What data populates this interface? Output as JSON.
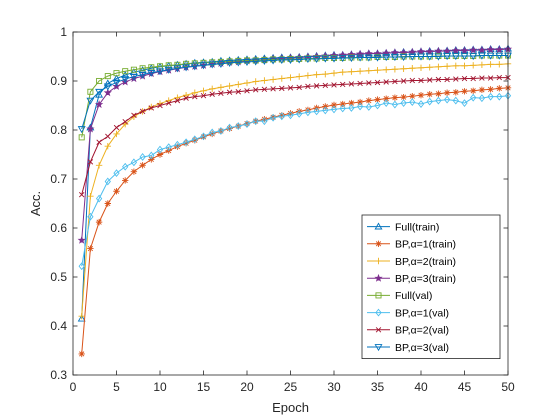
{
  "chart_data": {
    "type": "line",
    "xlabel": "Epoch",
    "ylabel": "Acc.",
    "xlim": [
      0,
      50
    ],
    "ylim": [
      0.3,
      1
    ],
    "xticks": [
      0,
      5,
      10,
      15,
      20,
      25,
      30,
      35,
      40,
      45,
      50
    ],
    "yticks": [
      0.3,
      0.4,
      0.5,
      0.6,
      0.7,
      0.8,
      0.9,
      1
    ],
    "ytick_labels": [
      "0.3",
      "0.4",
      "0.5",
      "0.6",
      "0.7",
      "0.8",
      "0.9",
      "1"
    ],
    "grid": false,
    "legend_position": "lower-right",
    "x": [
      1,
      2,
      3,
      4,
      5,
      6,
      7,
      8,
      9,
      10,
      11,
      12,
      13,
      14,
      15,
      16,
      17,
      18,
      19,
      20,
      21,
      22,
      23,
      24,
      25,
      26,
      27,
      28,
      29,
      30,
      31,
      32,
      33,
      34,
      35,
      36,
      37,
      38,
      39,
      40,
      41,
      42,
      43,
      44,
      45,
      46,
      47,
      48,
      49,
      50
    ],
    "series": [
      {
        "name": "Full(train)",
        "color": "#0072BD",
        "marker": "triangle-up",
        "values": [
          0.415,
          0.805,
          0.872,
          0.895,
          0.905,
          0.912,
          0.918,
          0.922,
          0.926,
          0.929,
          0.931,
          0.933,
          0.935,
          0.937,
          0.938,
          0.939,
          0.941,
          0.942,
          0.943,
          0.944,
          0.945,
          0.946,
          0.947,
          0.948,
          0.948,
          0.949,
          0.95,
          0.951,
          0.952,
          0.953,
          0.953,
          0.954,
          0.955,
          0.956,
          0.956,
          0.957,
          0.958,
          0.959,
          0.959,
          0.96,
          0.961,
          0.961,
          0.962,
          0.963,
          0.963,
          0.964,
          0.964,
          0.965,
          0.965,
          0.966
        ]
      },
      {
        "name": "BP,α=1(train)",
        "color": "#D95319",
        "marker": "asterisk",
        "values": [
          0.343,
          0.558,
          0.612,
          0.65,
          0.675,
          0.697,
          0.715,
          0.728,
          0.74,
          0.75,
          0.758,
          0.766,
          0.773,
          0.779,
          0.786,
          0.792,
          0.798,
          0.803,
          0.808,
          0.813,
          0.818,
          0.822,
          0.826,
          0.83,
          0.834,
          0.838,
          0.841,
          0.845,
          0.848,
          0.851,
          0.853,
          0.855,
          0.857,
          0.86,
          0.862,
          0.864,
          0.866,
          0.867,
          0.869,
          0.871,
          0.873,
          0.874,
          0.876,
          0.877,
          0.879,
          0.88,
          0.882,
          0.883,
          0.885,
          0.886
        ]
      },
      {
        "name": "BP,α=2(train)",
        "color": "#EDB120",
        "marker": "plus",
        "values": [
          0.42,
          0.665,
          0.728,
          0.767,
          0.792,
          0.812,
          0.827,
          0.838,
          0.847,
          0.854,
          0.86,
          0.866,
          0.871,
          0.876,
          0.88,
          0.884,
          0.887,
          0.89,
          0.893,
          0.896,
          0.899,
          0.901,
          0.903,
          0.905,
          0.907,
          0.909,
          0.911,
          0.913,
          0.914,
          0.916,
          0.918,
          0.919,
          0.92,
          0.921,
          0.922,
          0.923,
          0.924,
          0.925,
          0.926,
          0.927,
          0.928,
          0.929,
          0.93,
          0.931,
          0.931,
          0.932,
          0.933,
          0.934,
          0.934,
          0.935
        ]
      },
      {
        "name": "BP,α=3(train)",
        "color": "#7E2F8E",
        "marker": "star",
        "values": [
          0.575,
          0.802,
          0.852,
          0.876,
          0.889,
          0.898,
          0.905,
          0.91,
          0.915,
          0.919,
          0.922,
          0.925,
          0.928,
          0.93,
          0.932,
          0.934,
          0.936,
          0.938,
          0.939,
          0.941,
          0.942,
          0.943,
          0.945,
          0.946,
          0.947,
          0.948,
          0.949,
          0.95,
          0.951,
          0.952,
          0.953,
          0.954,
          0.955,
          0.956,
          0.956,
          0.957,
          0.958,
          0.958,
          0.959,
          0.96,
          0.96,
          0.961,
          0.961,
          0.962,
          0.962,
          0.963,
          0.963,
          0.964,
          0.964,
          0.965
        ]
      },
      {
        "name": "Full(val)",
        "color": "#77AC30",
        "marker": "square",
        "values": [
          0.785,
          0.878,
          0.9,
          0.91,
          0.916,
          0.92,
          0.923,
          0.926,
          0.928,
          0.93,
          0.932,
          0.933,
          0.935,
          0.936,
          0.937,
          0.938,
          0.939,
          0.94,
          0.941,
          0.942,
          0.942,
          0.943,
          0.944,
          0.944,
          0.945,
          0.945,
          0.946,
          0.946,
          0.947,
          0.947,
          0.947,
          0.948,
          0.948,
          0.948,
          0.949,
          0.949,
          0.949,
          0.95,
          0.95,
          0.95,
          0.95,
          0.951,
          0.951,
          0.951,
          0.951,
          0.951,
          0.952,
          0.952,
          0.952,
          0.952
        ]
      },
      {
        "name": "BP,α=1(val)",
        "color": "#4DBEEE",
        "marker": "diamond",
        "values": [
          0.522,
          0.623,
          0.66,
          0.695,
          0.712,
          0.725,
          0.734,
          0.745,
          0.748,
          0.76,
          0.765,
          0.77,
          0.775,
          0.781,
          0.787,
          0.795,
          0.798,
          0.805,
          0.808,
          0.812,
          0.818,
          0.818,
          0.825,
          0.828,
          0.83,
          0.833,
          0.836,
          0.838,
          0.84,
          0.842,
          0.844,
          0.845,
          0.848,
          0.847,
          0.85,
          0.855,
          0.852,
          0.855,
          0.857,
          0.853,
          0.858,
          0.86,
          0.862,
          0.86,
          0.855,
          0.866,
          0.865,
          0.868,
          0.868,
          0.87
        ]
      },
      {
        "name": "BP,α=2(val)",
        "color": "#A2142F",
        "marker": "x",
        "values": [
          0.668,
          0.735,
          0.775,
          0.787,
          0.805,
          0.817,
          0.83,
          0.838,
          0.845,
          0.85,
          0.855,
          0.86,
          0.865,
          0.868,
          0.87,
          0.873,
          0.875,
          0.877,
          0.878,
          0.88,
          0.882,
          0.883,
          0.884,
          0.885,
          0.886,
          0.887,
          0.889,
          0.89,
          0.891,
          0.892,
          0.893,
          0.894,
          0.895,
          0.896,
          0.897,
          0.898,
          0.899,
          0.9,
          0.901,
          0.901,
          0.902,
          0.903,
          0.903,
          0.904,
          0.905,
          0.905,
          0.906,
          0.906,
          0.907,
          0.907
        ]
      },
      {
        "name": "BP,α=3(val)",
        "color": "#0072BD",
        "marker": "triangle-down",
        "values": [
          0.802,
          0.86,
          0.878,
          0.889,
          0.897,
          0.904,
          0.909,
          0.913,
          0.917,
          0.92,
          0.923,
          0.926,
          0.928,
          0.93,
          0.932,
          0.934,
          0.935,
          0.937,
          0.938,
          0.939,
          0.94,
          0.941,
          0.942,
          0.943,
          0.943,
          0.944,
          0.945,
          0.945,
          0.946,
          0.946,
          0.947,
          0.947,
          0.948,
          0.948,
          0.948,
          0.949,
          0.949,
          0.949,
          0.95,
          0.95,
          0.95,
          0.95,
          0.951,
          0.951,
          0.951,
          0.951,
          0.952,
          0.952,
          0.952,
          0.952
        ]
      }
    ]
  }
}
